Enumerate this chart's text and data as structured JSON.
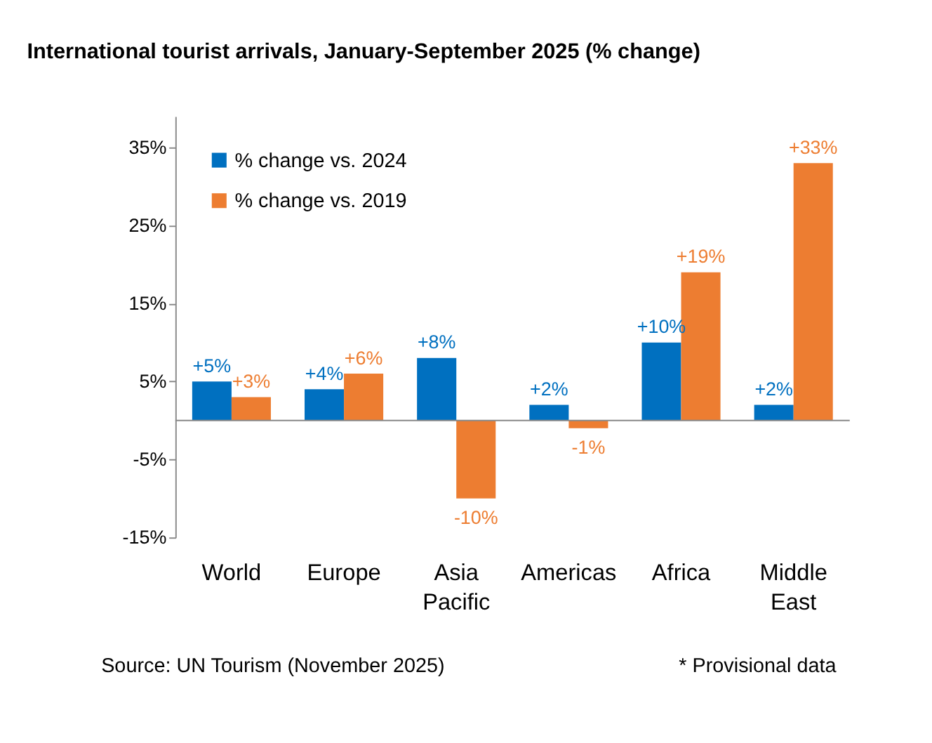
{
  "chart_data": {
    "type": "bar",
    "title": "International tourist arrivals, January-September 2025 (% change)",
    "categories": [
      "World",
      "Europe",
      "Asia Pacific",
      "Americas",
      "Africa",
      "Middle East"
    ],
    "series": [
      {
        "name": "% change vs. 2024",
        "color": "#0070c0",
        "values": [
          5,
          4,
          8,
          2,
          10,
          2
        ],
        "value_labels": [
          "+5%",
          "+4%",
          "+8%",
          "+2%",
          "+10%",
          "+2%"
        ]
      },
      {
        "name": "% change vs. 2019",
        "color": "#ed7d31",
        "values": [
          3,
          6,
          -10,
          -1,
          19,
          33
        ],
        "value_labels": [
          "+3%",
          "+6%",
          "-10%",
          "-1%",
          "+19%",
          "+33%"
        ]
      }
    ],
    "ylim": [
      -15,
      39
    ],
    "yticks": [
      {
        "value": -15,
        "label": "-15%"
      },
      {
        "value": -5,
        "label": "-5%"
      },
      {
        "value": 5,
        "label": "5%"
      },
      {
        "value": 15,
        "label": "15%"
      },
      {
        "value": 25,
        "label": "25%"
      },
      {
        "value": 35,
        "label": "35%"
      }
    ],
    "grid": false,
    "legend": "top left",
    "annotations": [
      "Source: UN Tourism (November 2025)",
      "* Provisional data"
    ]
  }
}
